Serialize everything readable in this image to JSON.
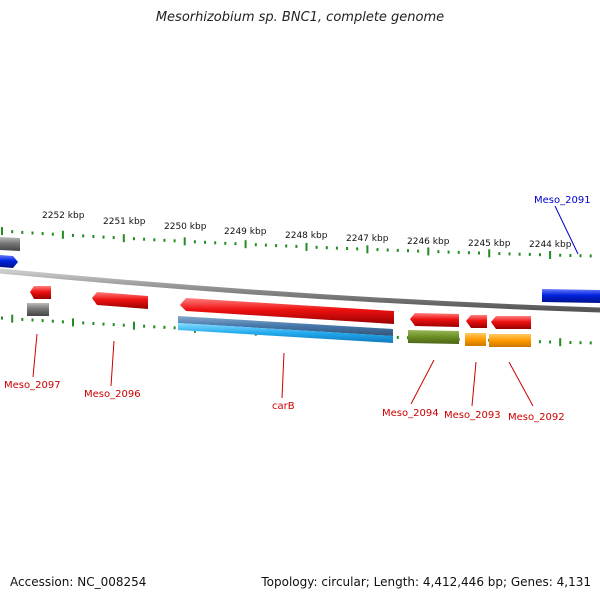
{
  "title": "Mesorhizobium sp. BNC1, complete genome",
  "footer": {
    "accession": "Accession: NC_008254",
    "summary": "Topology: circular; Length: 4,412,446 bp; Genes: 4,131"
  },
  "scale_labels": [
    "2252 kbp",
    "2251 kbp",
    "2250 kbp",
    "2249 kbp",
    "2248 kbp",
    "2247 kbp",
    "2246 kbp",
    "2245 kbp",
    "2244 kbp"
  ],
  "gene_labels": {
    "meso_2091": "Meso_2091",
    "meso_2092": "Meso_2092",
    "meso_2093": "Meso_2093",
    "meso_2094": "Meso_2094",
    "carb": "carB",
    "meso_2096": "Meso_2096",
    "meso_2097": "Meso_2097"
  },
  "colors": {
    "gene_red": "#ee1111",
    "gene_blue": "#0022dd",
    "gene_gray": "#777777",
    "gene_cyan": "#22aaee",
    "gene_olive": "#6b8e23",
    "gene_orange": "#ff9900",
    "ticks": "#228b22",
    "backbone": "#888888",
    "label_red": "#cc0000",
    "label_blue": "#0000cc"
  }
}
